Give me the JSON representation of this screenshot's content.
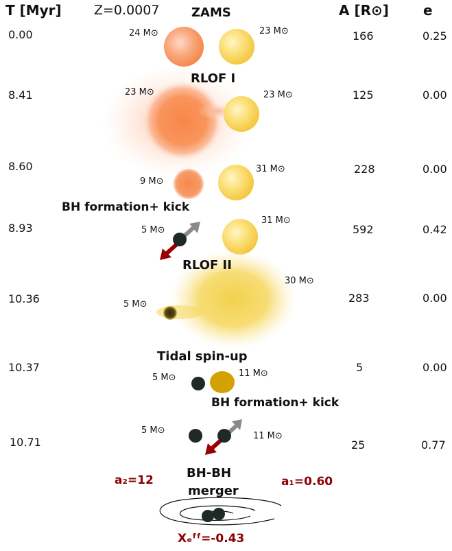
{
  "header": {
    "time_col": "T [Myr]",
    "metallicity": "Z=0.0007",
    "sep_col": "A [R⊙]",
    "ecc_col": "e"
  },
  "rows": [
    {
      "time": "0.00",
      "separation": "166",
      "ecc": "0.25"
    },
    {
      "time": "8.41",
      "separation": "125",
      "ecc": "0.00"
    },
    {
      "time": "8.60",
      "separation": "228",
      "ecc": "0.00"
    },
    {
      "time": "8.93",
      "separation": "592",
      "ecc": "0.42"
    },
    {
      "time": "10.36",
      "separation": "283",
      "ecc": "0.00"
    },
    {
      "time": "10.37",
      "separation": "5",
      "ecc": "0.00"
    },
    {
      "time": "10.71",
      "separation": "25",
      "ecc": "0.77"
    }
  ],
  "stages": {
    "zams": "ZAMS",
    "rlof1": "RLOF I",
    "bh_kick_1": "BH formation+ kick",
    "rlof2": "RLOF II",
    "tidal": "Tidal spin-up",
    "bh_kick_2": "BH formation+ kick",
    "merger_line1": "BH-BH",
    "merger_line2": "merger"
  },
  "masses": {
    "r0_left": "24 M⊙",
    "r0_right": "23 M⊙",
    "r1_left": "23 M⊙",
    "r1_right": "23 M⊙",
    "r2_left": "9 M⊙",
    "r2_right": "31 M⊙",
    "r3_left": "5 M⊙",
    "r3_right": "31 M⊙",
    "r4_left": "5 M⊙",
    "r4_right": "30 M⊙",
    "r5_left": "5 M⊙",
    "r5_right": "11 M⊙",
    "r6_left": "5 M⊙",
    "r6_right": "11 M⊙"
  },
  "spins": {
    "a2": "a₂=12",
    "a1": "a₁=0.60",
    "chi_eff": "Xₑᶠᶠ=-0.43"
  },
  "colors": {
    "orange_star": "#f58a4e",
    "yellow_star": "#f7d14a",
    "bh": "#1f2a26",
    "gold_star": "#d4a200",
    "kick_red": "#9b0000",
    "kick_grey": "#8a8a8a",
    "annotation": "#8b0000"
  }
}
